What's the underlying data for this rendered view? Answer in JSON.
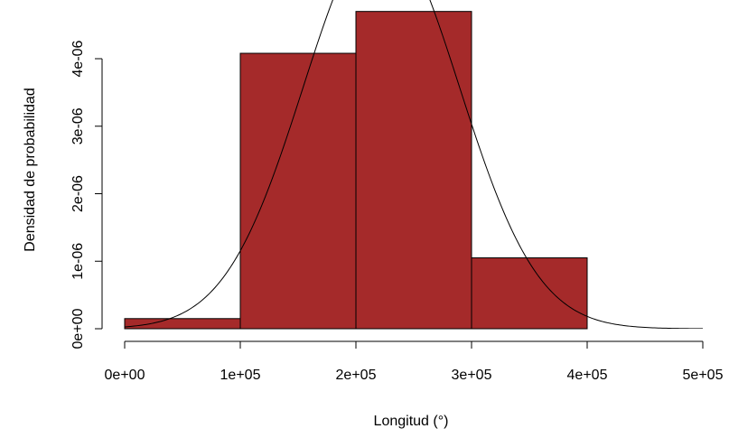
{
  "chart_data": {
    "type": "bar",
    "subtype": "histogram",
    "title": "",
    "xlabel": "Longitud (°)",
    "ylabel": "Densidad de probabilidad",
    "bins": [
      {
        "start": 0,
        "end": 100000,
        "density": 1.5e-07
      },
      {
        "start": 100000,
        "end": 200000,
        "density": 4.08e-06
      },
      {
        "start": 200000,
        "end": 300000,
        "density": 4.7e-06
      },
      {
        "start": 300000,
        "end": 400000,
        "density": 1.05e-06
      }
    ],
    "xlim": [
      0,
      500000
    ],
    "ylim": [
      0,
      4e-06
    ],
    "x_ticks": [
      0,
      100000,
      200000,
      300000,
      400000,
      500000
    ],
    "x_tick_labels": [
      "0e+00",
      "1e+05",
      "2e+05",
      "3e+05",
      "4e+05",
      "5e+05"
    ],
    "y_ticks": [
      0,
      1e-06,
      2e-06,
      3e-06,
      4e-06
    ],
    "y_tick_labels": [
      "0e+00",
      "1e-06",
      "2e-06",
      "3e-06",
      "4e-06"
    ],
    "density_curve": {
      "distribution": "normal",
      "mean": 222000,
      "sd": 67500,
      "x_range": [
        0,
        500000
      ]
    },
    "bar_color": "#A52A2A",
    "bar_border_color": "#000000",
    "curve_color": "#000000",
    "grid": false,
    "legend": "none"
  }
}
